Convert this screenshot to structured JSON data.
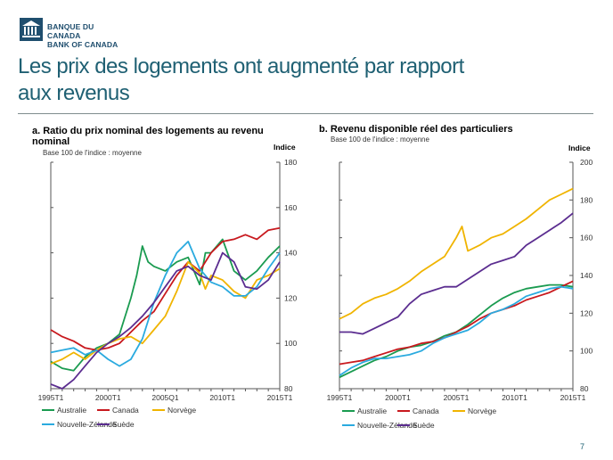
{
  "header": {
    "logo_line1": "BANQUE DU CANADA",
    "logo_line2": "BANK OF CANADA",
    "title_line1": "Les prix des logements ont augmenté par rapport",
    "title_line2": "aux revenus"
  },
  "page_number": "7",
  "colors": {
    "Australie": "#1a9b50",
    "Canada": "#c8191e",
    "Norvège": "#f0b400",
    "Nouvelle-Zélande": "#2aaadf",
    "Suède": "#5b2d90"
  },
  "chart_data": [
    {
      "type": "line",
      "title": "a. Ratio du prix nominal des logements au revenu nominal",
      "subtitle": "Base 100 de l'indice : moyenne",
      "ylabel": "Indice",
      "ylim": [
        80,
        180
      ],
      "yticks": [
        80,
        100,
        120,
        140,
        160,
        180
      ],
      "xlim": [
        1995,
        2015
      ],
      "xticks": [
        {
          "x": 1995,
          "label": "1995T1"
        },
        {
          "x": 2000,
          "label": "2000T1"
        },
        {
          "x": 2005,
          "label": "2005Q1"
        },
        {
          "x": 2010,
          "label": "2010T1"
        },
        {
          "x": 2015,
          "label": "2015T1"
        }
      ],
      "legend": [
        "Australie",
        "Canada",
        "Norvège",
        "Nouvelle-Zélande",
        "Suède"
      ],
      "series": [
        {
          "name": "Australie",
          "x": [
            1995,
            1996,
            1997,
            1998,
            1999,
            2000,
            2001,
            2002,
            2002.5,
            2003,
            2003.5,
            2004,
            2005,
            2006,
            2007,
            2008,
            2008.5,
            2009,
            2010,
            2011,
            2012,
            2013,
            2014,
            2015
          ],
          "y": [
            92,
            89,
            88,
            94,
            98,
            100,
            104,
            120,
            130,
            143,
            136,
            134,
            132,
            136,
            138,
            126,
            140,
            140,
            146,
            132,
            128,
            132,
            138,
            143
          ]
        },
        {
          "name": "Canada",
          "x": [
            1995,
            1996,
            1997,
            1998,
            1999,
            2000,
            2001,
            2002,
            2003,
            2004,
            2005,
            2006,
            2007,
            2008,
            2009,
            2010,
            2011,
            2012,
            2013,
            2014,
            2015
          ],
          "y": [
            106,
            103,
            101,
            98,
            97,
            98,
            100,
            105,
            110,
            114,
            122,
            130,
            136,
            132,
            140,
            145,
            146,
            148,
            146,
            150,
            151
          ]
        },
        {
          "name": "Norvège",
          "x": [
            1995,
            1996,
            1997,
            1998,
            1999,
            2000,
            2001,
            2002,
            2003,
            2004,
            2005,
            2006,
            2007,
            2008,
            2008.5,
            2009,
            2010,
            2011,
            2012,
            2013,
            2014,
            2015
          ],
          "y": [
            91,
            93,
            96,
            93,
            97,
            100,
            102,
            103,
            100,
            106,
            112,
            123,
            136,
            131,
            124,
            130,
            128,
            123,
            120,
            128,
            130,
            133
          ]
        },
        {
          "name": "Nouvelle-Zélande",
          "x": [
            1995,
            1996,
            1997,
            1998,
            1999,
            2000,
            2001,
            2002,
            2003,
            2004,
            2005,
            2006,
            2007,
            2008,
            2009,
            2010,
            2011,
            2012,
            2013,
            2014,
            2015
          ],
          "y": [
            96,
            97,
            98,
            95,
            97,
            93,
            90,
            93,
            102,
            118,
            130,
            140,
            145,
            133,
            127,
            125,
            121,
            121,
            125,
            133,
            140
          ]
        },
        {
          "name": "Suède",
          "x": [
            1995,
            1996,
            1997,
            1998,
            1999,
            2000,
            2001,
            2002,
            2003,
            2004,
            2005,
            2006,
            2007,
            2008,
            2009,
            2010,
            2011,
            2012,
            2013,
            2014,
            2015
          ],
          "y": [
            82,
            80,
            84,
            90,
            96,
            100,
            103,
            107,
            112,
            118,
            125,
            132,
            134,
            130,
            128,
            140,
            136,
            125,
            124,
            128,
            136
          ]
        }
      ]
    },
    {
      "type": "line",
      "title": "b. Revenu disponible réel des particuliers",
      "subtitle": "Base 100 de l'indice : moyenne",
      "ylabel": "Indice",
      "ylim": [
        80,
        200
      ],
      "yticks": [
        80,
        100,
        120,
        140,
        160,
        180,
        200
      ],
      "xlim": [
        1995,
        2015
      ],
      "xticks": [
        {
          "x": 1995,
          "label": "1995T1"
        },
        {
          "x": 2000,
          "label": "2000T1"
        },
        {
          "x": 2005,
          "label": "2005T1"
        },
        {
          "x": 2010,
          "label": "2010T1"
        },
        {
          "x": 2015,
          "label": "2015T1"
        }
      ],
      "legend": [
        "Australie",
        "Canada",
        "Norvège",
        "Nouvelle-Zélande",
        "Suède"
      ],
      "series": [
        {
          "name": "Australie",
          "x": [
            1995,
            1996,
            1997,
            1998,
            1999,
            2000,
            2001,
            2002,
            2003,
            2004,
            2005,
            2006,
            2007,
            2008,
            2009,
            2010,
            2011,
            2012,
            2013,
            2014,
            2015
          ],
          "y": [
            86,
            89,
            92,
            95,
            97,
            100,
            102,
            103,
            105,
            108,
            110,
            114,
            119,
            124,
            128,
            131,
            133,
            134,
            135,
            135,
            134
          ]
        },
        {
          "name": "Canada",
          "x": [
            1995,
            1996,
            1997,
            1998,
            1999,
            2000,
            2001,
            2002,
            2003,
            2004,
            2005,
            2006,
            2007,
            2008,
            2009,
            2010,
            2011,
            2012,
            2013,
            2014,
            2015
          ],
          "y": [
            93,
            94,
            95,
            97,
            99,
            101,
            102,
            104,
            105,
            107,
            110,
            113,
            117,
            120,
            122,
            124,
            127,
            129,
            131,
            134,
            137
          ]
        },
        {
          "name": "Norvège",
          "x": [
            1995,
            1996,
            1997,
            1998,
            1999,
            2000,
            2001,
            2002,
            2003,
            2004,
            2005,
            2005.5,
            2006,
            2007,
            2008,
            2009,
            2010,
            2011,
            2012,
            2013,
            2014,
            2015
          ],
          "y": [
            117,
            120,
            125,
            128,
            130,
            133,
            137,
            142,
            146,
            150,
            160,
            166,
            153,
            156,
            160,
            162,
            166,
            170,
            175,
            180,
            183,
            186
          ]
        },
        {
          "name": "Nouvelle-Zélande",
          "x": [
            1995,
            1996,
            1997,
            1998,
            1999,
            2000,
            2001,
            2002,
            2003,
            2004,
            2005,
            2006,
            2007,
            2008,
            2009,
            2010,
            2011,
            2012,
            2013,
            2014,
            2015
          ],
          "y": [
            87,
            91,
            94,
            96,
            96,
            97,
            98,
            100,
            104,
            107,
            109,
            111,
            115,
            120,
            122,
            125,
            129,
            131,
            133,
            134,
            133
          ]
        },
        {
          "name": "Suède",
          "x": [
            1995,
            1996,
            1997,
            1998,
            1999,
            2000,
            2001,
            2002,
            2003,
            2004,
            2005,
            2006,
            2007,
            2008,
            2009,
            2010,
            2011,
            2012,
            2013,
            2014,
            2015
          ],
          "y": [
            110,
            110,
            109,
            112,
            115,
            118,
            125,
            130,
            132,
            134,
            134,
            138,
            142,
            146,
            148,
            150,
            156,
            160,
            164,
            168,
            173
          ]
        }
      ]
    }
  ]
}
